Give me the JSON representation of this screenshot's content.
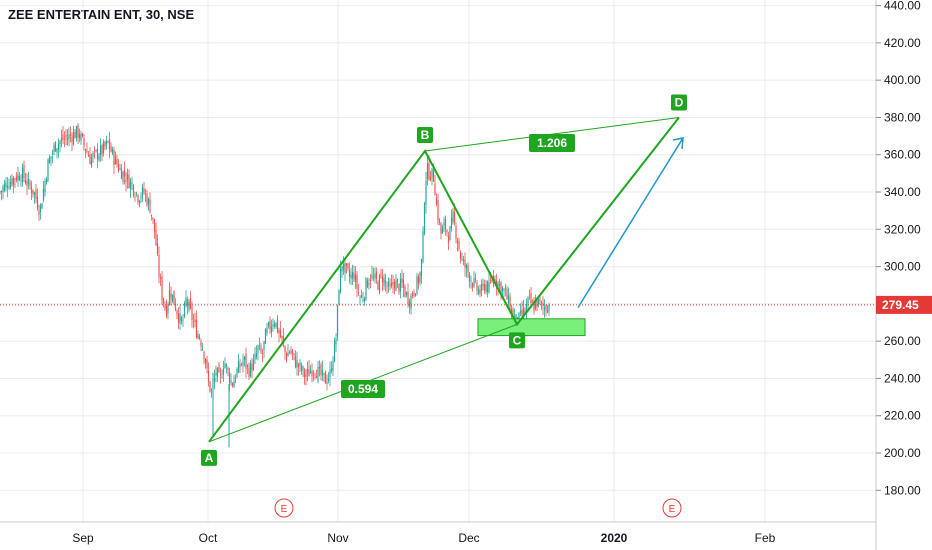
{
  "header": {
    "title": "ZEE ENTERTAIN ENT, 30, NSE"
  },
  "colors": {
    "pattern": "#1fa51f",
    "up_candle": "#26a69a",
    "down_candle": "#ef5350",
    "projection_arrow": "#2196c8",
    "target_zone": "#7bef7b",
    "current_price": "#e53935",
    "event_marker": "#e53935"
  },
  "chart_data": {
    "type": "candlestick",
    "ylim": [
      163,
      443
    ],
    "y_ticks": [
      "180.00",
      "200.00",
      "220.00",
      "240.00",
      "260.00",
      "280.00",
      "300.00",
      "320.00",
      "340.00",
      "360.00",
      "380.00",
      "400.00",
      "420.00",
      "440.00"
    ],
    "x_ticks": [
      {
        "label": "Sep",
        "bold": false
      },
      {
        "label": "Oct",
        "bold": false
      },
      {
        "label": "Nov",
        "bold": false
      },
      {
        "label": "Dec",
        "bold": false
      },
      {
        "label": "2020",
        "bold": true
      },
      {
        "label": "Feb",
        "bold": false
      }
    ],
    "current_price": 279.45,
    "current_price_label": "279.45",
    "price_path": [
      [
        0,
        340
      ],
      [
        8,
        345
      ],
      [
        15,
        348
      ],
      [
        22,
        350
      ],
      [
        28,
        344
      ],
      [
        34,
        340
      ],
      [
        40,
        330
      ],
      [
        44,
        343
      ],
      [
        48,
        355
      ],
      [
        55,
        365
      ],
      [
        62,
        368
      ],
      [
        70,
        370
      ],
      [
        78,
        372
      ],
      [
        84,
        365
      ],
      [
        90,
        358
      ],
      [
        96,
        360
      ],
      [
        102,
        362
      ],
      [
        108,
        366
      ],
      [
        114,
        358
      ],
      [
        120,
        352
      ],
      [
        126,
        348
      ],
      [
        132,
        344
      ],
      [
        138,
        338
      ],
      [
        144,
        340
      ],
      [
        150,
        332
      ],
      [
        155,
        318
      ],
      [
        158,
        300
      ],
      [
        162,
        285
      ],
      [
        166,
        276
      ],
      [
        170,
        288
      ],
      [
        176,
        278
      ],
      [
        182,
        268
      ],
      [
        186,
        282
      ],
      [
        190,
        276
      ],
      [
        196,
        266
      ],
      [
        200,
        262
      ],
      [
        205,
        252
      ],
      [
        208,
        238
      ],
      [
        212,
        232
      ],
      [
        216,
        244
      ],
      [
        220,
        238
      ],
      [
        224,
        250
      ],
      [
        228,
        243
      ],
      [
        232,
        237
      ],
      [
        238,
        245
      ],
      [
        244,
        250
      ],
      [
        248,
        244
      ],
      [
        254,
        248
      ],
      [
        258,
        256
      ],
      [
        262,
        252
      ],
      [
        266,
        264
      ],
      [
        270,
        268
      ],
      [
        274,
        272
      ],
      [
        278,
        266
      ],
      [
        282,
        260
      ],
      [
        286,
        252
      ],
      [
        290,
        255
      ],
      [
        294,
        250
      ],
      [
        298,
        247
      ],
      [
        302,
        244
      ],
      [
        306,
        241
      ],
      [
        310,
        244
      ],
      [
        314,
        246
      ],
      [
        318,
        243
      ],
      [
        322,
        241
      ],
      [
        326,
        239
      ],
      [
        330,
        242
      ],
      [
        333,
        252
      ],
      [
        336,
        262
      ],
      [
        339,
        290
      ],
      [
        342,
        302
      ],
      [
        346,
        297
      ],
      [
        350,
        294
      ],
      [
        354,
        296
      ],
      [
        358,
        286
      ],
      [
        362,
        282
      ],
      [
        366,
        290
      ],
      [
        370,
        295
      ],
      [
        374,
        293
      ],
      [
        378,
        291
      ],
      [
        382,
        295
      ],
      [
        386,
        290
      ],
      [
        390,
        287
      ],
      [
        394,
        292
      ],
      [
        398,
        289
      ],
      [
        402,
        290
      ],
      [
        406,
        285
      ],
      [
        410,
        282
      ],
      [
        414,
        288
      ],
      [
        418,
        292
      ],
      [
        421,
        298
      ],
      [
        423,
        315
      ],
      [
        425,
        345
      ],
      [
        427,
        352
      ],
      [
        430,
        350
      ],
      [
        434,
        348
      ],
      [
        437,
        330
      ],
      [
        441,
        318
      ],
      [
        445,
        322
      ],
      [
        449,
        316
      ],
      [
        453,
        326
      ],
      [
        457,
        316
      ],
      [
        461,
        304
      ],
      [
        465,
        300
      ],
      [
        469,
        296
      ],
      [
        473,
        291
      ],
      [
        477,
        288
      ],
      [
        481,
        286
      ],
      [
        485,
        291
      ],
      [
        489,
        288
      ],
      [
        493,
        295
      ],
      [
        497,
        292
      ],
      [
        501,
        289
      ],
      [
        505,
        286
      ],
      [
        509,
        280
      ],
      [
        513,
        274
      ],
      [
        517,
        270
      ],
      [
        521,
        273
      ],
      [
        525,
        276
      ],
      [
        529,
        282
      ],
      [
        533,
        278
      ],
      [
        537,
        281
      ],
      [
        541,
        279
      ],
      [
        545,
        278
      ],
      [
        549,
        279.45
      ]
    ],
    "xabcd_pattern": {
      "points": [
        {
          "label": "A",
          "value": 206
        },
        {
          "label": "B",
          "value": 362
        },
        {
          "label": "C",
          "value": 269
        },
        {
          "label": "D",
          "value": 380
        }
      ],
      "ratios": [
        {
          "label": "0.594"
        },
        {
          "label": "1.206"
        }
      ]
    },
    "target_zone_range": [
      263,
      272
    ],
    "events": [
      {
        "label": "E"
      },
      {
        "label": "E"
      }
    ]
  }
}
